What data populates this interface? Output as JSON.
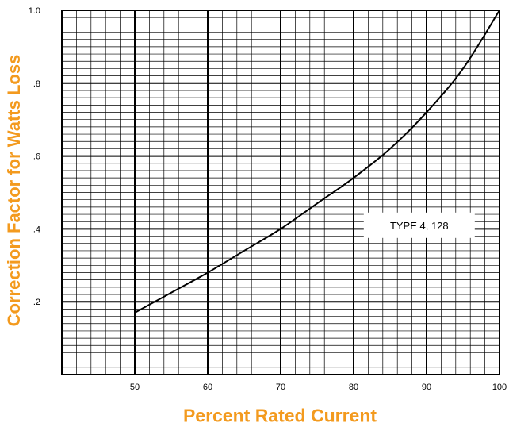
{
  "chart_data": {
    "type": "line",
    "xlabel": "Percent Rated Current",
    "ylabel": "Correction Factor for Watts Loss",
    "xlim": [
      40,
      100
    ],
    "ylim": [
      0,
      1.0
    ],
    "x_ticks": [
      {
        "value": 50,
        "label": "50"
      },
      {
        "value": 60,
        "label": "60"
      },
      {
        "value": 70,
        "label": "70"
      },
      {
        "value": 80,
        "label": "80"
      },
      {
        "value": 90,
        "label": "90"
      },
      {
        "value": 100,
        "label": "100"
      }
    ],
    "y_ticks": [
      {
        "value": 0.2,
        "label": ".2"
      },
      {
        "value": 0.4,
        "label": ".4"
      },
      {
        "value": 0.6,
        "label": ".6"
      },
      {
        "value": 0.8,
        "label": ".8"
      },
      {
        "value": 1.0,
        "label": "1.0"
      }
    ],
    "grid": true,
    "series": [
      {
        "name": "TYPE 4, 128",
        "x": [
          50,
          55,
          60,
          65,
          70,
          75,
          80,
          85,
          90,
          95,
          100
        ],
        "y": [
          0.17,
          0.225,
          0.28,
          0.34,
          0.4,
          0.47,
          0.54,
          0.62,
          0.72,
          0.84,
          1.0
        ]
      }
    ],
    "annotations": [
      {
        "text": "TYPE 4, 128",
        "x": 89,
        "y": 0.41
      }
    ]
  },
  "colors": {
    "axis_title": "#f39a1e",
    "grid": "#000000",
    "curve": "#000000",
    "background": "#ffffff"
  }
}
